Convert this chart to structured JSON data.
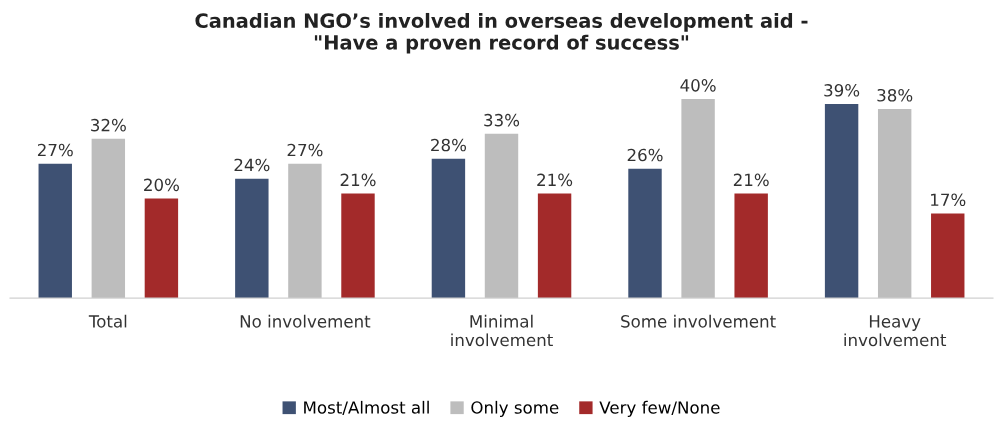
{
  "chart_data": {
    "type": "bar",
    "title": "Canadian NGO’s involved in overseas development aid -\n\"Have a proven record of success\"",
    "categories": [
      "Total",
      "No involvement",
      "Minimal\ninvolvement",
      "Some involvement",
      "Heavy\ninvolvement"
    ],
    "series": [
      {
        "name": "Most/Almost all",
        "color": "#3e5173",
        "values": [
          27,
          24,
          28,
          26,
          39
        ],
        "value_labels": [
          "27%",
          "24%",
          "28%",
          "26%",
          "39%"
        ]
      },
      {
        "name": "Only some",
        "color": "#bdbdbd",
        "values": [
          32,
          27,
          33,
          40,
          38
        ],
        "value_labels": [
          "32%",
          "27%",
          "33%",
          "40%",
          "38%"
        ]
      },
      {
        "name": "Very few/None",
        "color": "#a32a2a",
        "values": [
          20,
          21,
          21,
          21,
          17
        ],
        "value_labels": [
          "20%",
          "21%",
          "21%",
          "21%",
          "17%"
        ]
      }
    ],
    "legend": "bottom",
    "grid": false,
    "tick_labels": "x"
  }
}
